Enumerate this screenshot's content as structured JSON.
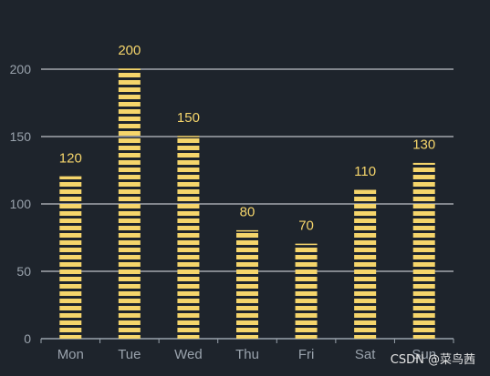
{
  "chart_data": {
    "type": "bar",
    "categories": [
      "Mon",
      "Tue",
      "Wed",
      "Thu",
      "Fri",
      "Sat",
      "Sun"
    ],
    "values": [
      120,
      200,
      150,
      80,
      70,
      110,
      130
    ],
    "ylim": [
      0,
      200
    ],
    "yticks": [
      0,
      50,
      100,
      150,
      200
    ],
    "grid": true,
    "bar_color": "#f5d56b",
    "label_color": "#f5d56b",
    "axis_color": "#9aa3ad",
    "grid_color": "#e6e9ee"
  },
  "watermark": "CSDN @菜鸟茜"
}
